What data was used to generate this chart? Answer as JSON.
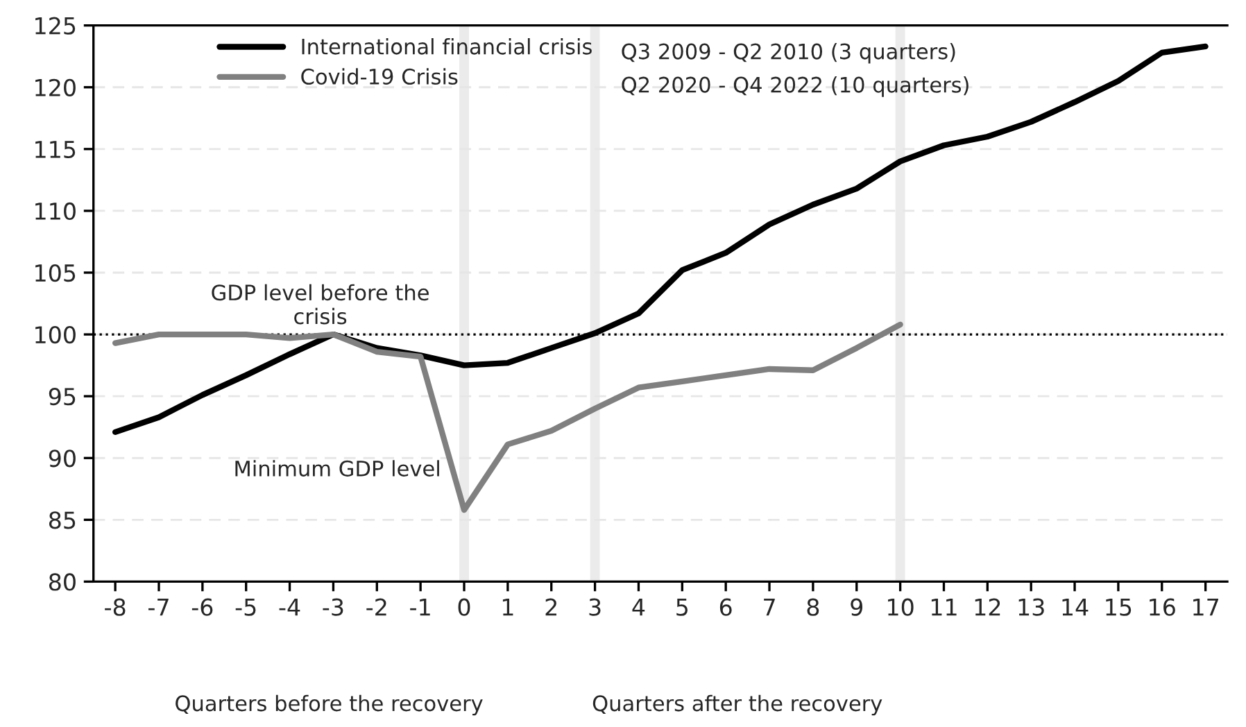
{
  "chart_data": {
    "type": "line",
    "x": [
      -8,
      -7,
      -6,
      -5,
      -4,
      -3,
      -2,
      -1,
      0,
      1,
      2,
      3,
      4,
      5,
      6,
      7,
      8,
      9,
      10,
      11,
      12,
      13,
      14,
      15,
      16,
      17
    ],
    "xlim": [
      -8.5,
      17.5
    ],
    "xticks": [
      -8,
      -7,
      -6,
      -5,
      -4,
      -3,
      -2,
      -1,
      0,
      1,
      2,
      3,
      4,
      5,
      6,
      7,
      8,
      9,
      10,
      11,
      12,
      13,
      14,
      15,
      16,
      17
    ],
    "ylim": [
      80,
      125
    ],
    "yticks": [
      80,
      85,
      90,
      95,
      100,
      105,
      110,
      115,
      120,
      125
    ],
    "series": [
      {
        "name": "International financial crisis",
        "color": "#000000",
        "values": [
          92.1,
          93.3,
          95.1,
          96.7,
          98.4,
          100.0,
          98.9,
          98.3,
          97.5,
          97.7,
          98.9,
          100.1,
          101.7,
          105.2,
          106.6,
          108.9,
          110.5,
          111.8,
          114.0,
          115.3,
          116.0,
          117.2,
          118.8,
          120.5,
          122.8,
          123.3
        ]
      },
      {
        "name": "Covid-19 Crisis",
        "color": "#808080",
        "values": [
          99.3,
          100.0,
          100.0,
          100.0,
          99.7,
          100.0,
          98.6,
          98.2,
          85.8,
          91.1,
          92.2,
          94.0,
          95.7,
          96.2,
          96.7,
          97.2,
          97.1,
          98.9,
          100.8,
          null,
          null,
          null,
          null,
          null,
          null,
          null
        ]
      }
    ],
    "ref_lines": [
      {
        "axis": "y",
        "value": 100,
        "color": "#000000",
        "line_style": "dotted"
      },
      {
        "axis": "x",
        "value": 0,
        "color": "#ebebeb",
        "line_style": "solid"
      },
      {
        "axis": "x",
        "value": 3,
        "color": "#ebebeb",
        "line_style": "solid"
      },
      {
        "axis": "x",
        "value": 10,
        "color": "#ebebeb",
        "line_style": "solid"
      }
    ],
    "annotations": [
      "GDP level before the\ncrisis",
      "Minimum GDP level",
      "Q3 2009 - Q2 2010 (3 quarters)",
      "Q2 2020 - Q4 2022 (10 quarters)",
      "Quarters before the recovery",
      "Quarters after the recovery"
    ],
    "grid": "y",
    "legend": "top",
    "line_style": "solid",
    "marker": "none"
  }
}
